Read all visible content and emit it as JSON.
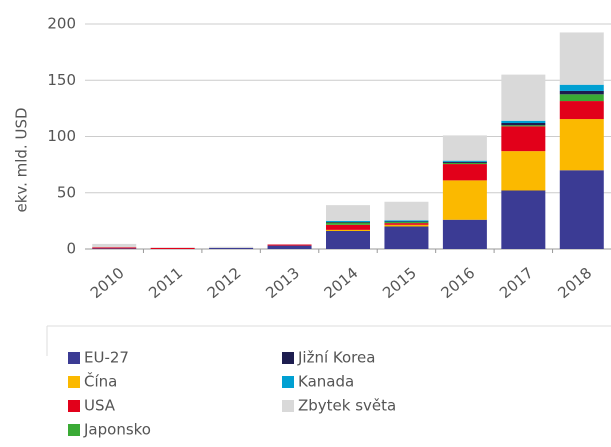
{
  "chart_data": {
    "type": "bar",
    "stacked": true,
    "y_label": "ekv. mld. USD",
    "categories": [
      "2010",
      "2011",
      "2012",
      "2013",
      "2014",
      "2015",
      "2016",
      "2017",
      "2018"
    ],
    "series": [
      {
        "name": "EU-27",
        "color": "#3b3b94",
        "values": [
          0.5,
          0,
          1,
          3,
          16,
          20,
          26,
          52,
          70
        ]
      },
      {
        "name": "Čína",
        "color": "#fbb900",
        "values": [
          0,
          0,
          0,
          0,
          1,
          1.5,
          35,
          35,
          45.5
        ]
      },
      {
        "name": "USA",
        "color": "#e2001a",
        "values": [
          1,
          1,
          0,
          1,
          4.5,
          1.5,
          14.5,
          22,
          16
        ]
      },
      {
        "name": "Japonsko",
        "color": "#3aaa35",
        "values": [
          0,
          0,
          0,
          0,
          2,
          1,
          1,
          1,
          6
        ]
      },
      {
        "name": "Jižní Korea",
        "color": "#1d1d4f",
        "values": [
          0,
          0,
          0,
          0,
          0.5,
          0.5,
          1,
          2,
          3
        ]
      },
      {
        "name": "Kanada",
        "color": "#00a0d2",
        "values": [
          0,
          0,
          0,
          0,
          1,
          1,
          1,
          2,
          5.5
        ]
      },
      {
        "name": "Zbytek světa",
        "color": "#d9d9d9",
        "values": [
          3,
          0.5,
          1,
          0,
          14,
          16.5,
          22.5,
          41,
          46.5
        ]
      }
    ],
    "ylim": [
      0,
      200
    ],
    "yticks": [
      0,
      50,
      100,
      150,
      200
    ],
    "grid": true
  }
}
